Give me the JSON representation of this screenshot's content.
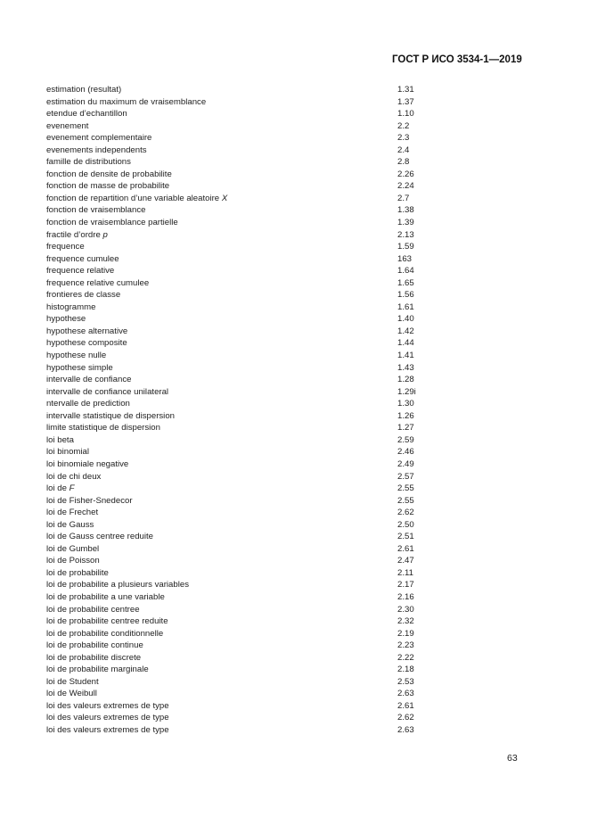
{
  "header": {
    "title": "ГОСТ Р ИСО 3534-1—2019"
  },
  "entries": [
    {
      "term": "estimation (resultat)",
      "italic": "",
      "ref": "1.31"
    },
    {
      "term": "estimation du maximum de vraisemblance",
      "italic": "",
      "ref": "1.37"
    },
    {
      "term": "etendue d’echantillon",
      "italic": "",
      "ref": "1.10"
    },
    {
      "term": "evenement",
      "italic": "",
      "ref": "2.2"
    },
    {
      "term": "evenement complementaire",
      "italic": "",
      "ref": "2.3"
    },
    {
      "term": "evenements independents",
      "italic": "",
      "ref": "2.4"
    },
    {
      "term": "famille de distributions",
      "italic": "",
      "ref": "2.8"
    },
    {
      "term": "fonction de densite de probabilite",
      "italic": "",
      "ref": "2.26"
    },
    {
      "term": "fonction de masse de probabilite",
      "italic": "",
      "ref": "2.24"
    },
    {
      "term": "fonction de repartition d’une variable aleatoire ",
      "italic": "X",
      "ref": "2.7"
    },
    {
      "term": "fonction de vraisemblance",
      "italic": "",
      "ref": "1.38"
    },
    {
      "term": "fonction de vraisemblance partielle",
      "italic": "",
      "ref": "1.39"
    },
    {
      "term": "fractile d’ordre ",
      "italic": "p",
      "ref": "2.13"
    },
    {
      "term": "frequence",
      "italic": "",
      "ref": "1.59"
    },
    {
      "term": "frequence cumulee",
      "italic": "",
      "ref": "163"
    },
    {
      "term": "frequence relative",
      "italic": "",
      "ref": "1.64"
    },
    {
      "term": "frequence relative cumulee",
      "italic": "",
      "ref": "1.65"
    },
    {
      "term": "frontieres de classe",
      "italic": "",
      "ref": "1.56"
    },
    {
      "term": "histogramme",
      "italic": "",
      "ref": "1.61"
    },
    {
      "term": "hypothese",
      "italic": "",
      "ref": "1.40"
    },
    {
      "term": "hypothese alternative",
      "italic": "",
      "ref": "1.42"
    },
    {
      "term": "hypothese composite",
      "italic": "",
      "ref": "1.44"
    },
    {
      "term": "hypothese nulle",
      "italic": "",
      "ref": "1.41"
    },
    {
      "term": "hypothese simple",
      "italic": "",
      "ref": "1.43"
    },
    {
      "term": "intervalle de confiance",
      "italic": "",
      "ref": "1.28"
    },
    {
      "term": "intervalle de confiance unilateral",
      "italic": "",
      "ref": "1.29i"
    },
    {
      "term": "ntervalle de prediction",
      "italic": "",
      "ref": "1.30"
    },
    {
      "term": "intervalle statistique de dispersion",
      "italic": "",
      "ref": "1.26"
    },
    {
      "term": "limite statistique de dispersion",
      "italic": "",
      "ref": "1.27"
    },
    {
      "term": "loi beta",
      "italic": "",
      "ref": "2.59"
    },
    {
      "term": "loi binomial",
      "italic": "",
      "ref": "2.46"
    },
    {
      "term": "loi binomiale negative",
      "italic": "",
      "ref": "2.49"
    },
    {
      "term": "loi de chi deux",
      "italic": "",
      "ref": "2.57"
    },
    {
      "term": "loi de ",
      "italic": "F",
      "ref": "2.55"
    },
    {
      "term": "loi de Fisher-Snedecor",
      "italic": "",
      "ref": "2.55"
    },
    {
      "term": "loi de Frechet",
      "italic": "",
      "ref": "2.62"
    },
    {
      "term": "loi de Gauss",
      "italic": "",
      "ref": "2.50"
    },
    {
      "term": "loi de Gauss centree reduite",
      "italic": "",
      "ref": "2.51"
    },
    {
      "term": "loi de Gumbel",
      "italic": "",
      "ref": "2.61"
    },
    {
      "term": "loi de Poisson",
      "italic": "",
      "ref": "2.47"
    },
    {
      "term": "loi de probabilite",
      "italic": "",
      "ref": "2.11"
    },
    {
      "term": "loi de probabilite a plusieurs variables",
      "italic": "",
      "ref": "2.17"
    },
    {
      "term": "loi de probabilite a une variable",
      "italic": "",
      "ref": "2.16"
    },
    {
      "term": "loi de probabilite centree",
      "italic": "",
      "ref": "2.30"
    },
    {
      "term": "loi de probabilite centree reduite",
      "italic": "",
      "ref": "2.32"
    },
    {
      "term": "loi de probabilite conditionnelle",
      "italic": "",
      "ref": "2.19"
    },
    {
      "term": "loi de probabilite continue",
      "italic": "",
      "ref": "2.23"
    },
    {
      "term": "loi de probabilite discrete",
      "italic": "",
      "ref": "2.22"
    },
    {
      "term": "loi de probabilite marginale",
      "italic": "",
      "ref": "2.18"
    },
    {
      "term": "loi de Student",
      "italic": "",
      "ref": "2.53"
    },
    {
      "term": "loi de Weibull",
      "italic": "",
      "ref": "2.63"
    },
    {
      "term": "loi des valeurs extremes de type",
      "italic": "",
      "ref": "2.61"
    },
    {
      "term": "loi des valeurs extremes de type",
      "italic": "",
      "ref": "2.62"
    },
    {
      "term": "loi des valeurs extremes de type",
      "italic": "",
      "ref": "2.63"
    }
  ],
  "footer": {
    "page_number": "63"
  }
}
